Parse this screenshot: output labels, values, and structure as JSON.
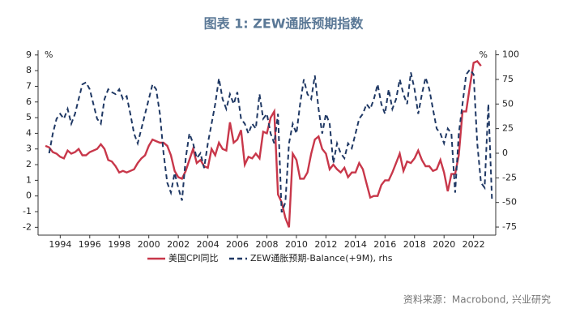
{
  "chart_data": {
    "type": "line",
    "title": "图表 1:     ZEW通胀预期指数",
    "source": "资料来源：Macrobond, 兴业研究",
    "y_unit": "%",
    "y2_unit": "%",
    "xlim": [
      1992.5,
      2023.5
    ],
    "xticks": [
      1994,
      1996,
      1998,
      2000,
      2002,
      2004,
      2006,
      2008,
      2010,
      2012,
      2014,
      2016,
      2018,
      2020,
      2022
    ],
    "ylim": [
      -2.5,
      9.3
    ],
    "yticks": [
      -2,
      -1,
      0,
      1,
      2,
      3,
      4,
      5,
      6,
      7,
      8,
      9
    ],
    "y2lim": [
      -83.2,
      104.6
    ],
    "y2ticks": [
      -75,
      -50,
      -25,
      0,
      25,
      50,
      75,
      100
    ],
    "grid": false,
    "legend": "bottom",
    "series": [
      {
        "name": "美国CPI同比",
        "color": "#c8374a",
        "dash": false,
        "x": [
          1993,
          1993.25,
          1993.5,
          1993.75,
          1994,
          1994.25,
          1994.5,
          1994.75,
          1995,
          1995.25,
          1995.5,
          1995.75,
          1996,
          1996.25,
          1996.5,
          1996.75,
          1997,
          1997.25,
          1997.5,
          1997.75,
          1998,
          1998.25,
          1998.5,
          1998.75,
          1999,
          1999.25,
          1999.5,
          1999.75,
          2000,
          2000.25,
          2000.5,
          2000.75,
          2001,
          2001.25,
          2001.5,
          2001.75,
          2002,
          2002.25,
          2002.5,
          2002.75,
          2003,
          2003.25,
          2003.5,
          2003.75,
          2004,
          2004.25,
          2004.5,
          2004.75,
          2005,
          2005.25,
          2005.5,
          2005.75,
          2006,
          2006.25,
          2006.5,
          2006.75,
          2007,
          2007.25,
          2007.5,
          2007.75,
          2008,
          2008.25,
          2008.5,
          2008.75,
          2009,
          2009.25,
          2009.5,
          2009.75,
          2010,
          2010.25,
          2010.5,
          2010.75,
          2011,
          2011.25,
          2011.5,
          2011.75,
          2012,
          2012.25,
          2012.5,
          2012.75,
          2013,
          2013.25,
          2013.5,
          2013.75,
          2014,
          2014.25,
          2014.5,
          2014.75,
          2015,
          2015.25,
          2015.5,
          2015.75,
          2016,
          2016.25,
          2016.5,
          2016.75,
          2017,
          2017.25,
          2017.5,
          2017.75,
          2018,
          2018.25,
          2018.5,
          2018.75,
          2019,
          2019.25,
          2019.5,
          2019.75,
          2020,
          2020.25,
          2020.5,
          2020.75,
          2021,
          2021.25,
          2021.5,
          2021.75,
          2022,
          2022.25,
          2022.5
        ],
        "values": [
          3.2,
          3.1,
          2.8,
          2.7,
          2.5,
          2.4,
          2.9,
          2.7,
          2.8,
          3.0,
          2.6,
          2.6,
          2.8,
          2.9,
          3.0,
          3.3,
          3.0,
          2.3,
          2.2,
          1.9,
          1.5,
          1.6,
          1.5,
          1.6,
          1.7,
          2.1,
          2.4,
          2.6,
          3.2,
          3.6,
          3.5,
          3.4,
          3.4,
          3.2,
          2.6,
          1.6,
          1.2,
          1.1,
          1.6,
          2.3,
          3.0,
          2.1,
          2.3,
          1.9,
          1.8,
          3.0,
          2.6,
          3.4,
          3.0,
          2.9,
          4.7,
          3.4,
          3.6,
          4.2,
          2.0,
          2.5,
          2.4,
          2.7,
          2.4,
          4.1,
          4.0,
          5.0,
          5.4,
          0.1,
          -0.4,
          -1.4,
          -2.0,
          2.7,
          2.3,
          1.1,
          1.1,
          1.5,
          2.7,
          3.6,
          3.8,
          3.0,
          2.7,
          1.7,
          2.0,
          1.7,
          1.5,
          1.8,
          1.2,
          1.5,
          1.5,
          2.1,
          1.7,
          0.8,
          -0.1,
          0.0,
          0.0,
          0.7,
          1.0,
          1.0,
          1.5,
          2.1,
          2.7,
          1.6,
          2.2,
          2.1,
          2.4,
          2.9,
          2.3,
          1.9,
          1.9,
          1.6,
          1.7,
          2.3,
          1.5,
          0.3,
          1.4,
          1.4,
          2.6,
          5.4,
          5.4,
          7.0,
          8.5,
          8.6,
          8.3
        ]
      },
      {
        "name": "ZEW通胀预期-Balance(+9M), rhs",
        "color": "#1f3864",
        "dash": true,
        "axis": "y2",
        "x": [
          1993.25,
          1993.5,
          1993.75,
          1994,
          1994.25,
          1994.5,
          1994.75,
          1995,
          1995.25,
          1995.5,
          1995.75,
          1996,
          1996.25,
          1996.5,
          1996.75,
          1997,
          1997.25,
          1997.5,
          1997.75,
          1998,
          1998.25,
          1998.5,
          1998.75,
          1999,
          1999.25,
          1999.5,
          1999.75,
          2000,
          2000.25,
          2000.5,
          2000.75,
          2001,
          2001.25,
          2001.5,
          2001.75,
          2002,
          2002.25,
          2002.5,
          2002.75,
          2003,
          2003.25,
          2003.5,
          2003.75,
          2004,
          2004.25,
          2004.5,
          2004.75,
          2005,
          2005.25,
          2005.5,
          2005.75,
          2006,
          2006.25,
          2006.5,
          2006.75,
          2007,
          2007.25,
          2007.5,
          2007.75,
          2008,
          2008.25,
          2008.5,
          2008.75,
          2009,
          2009.25,
          2009.5,
          2009.75,
          2010,
          2010.25,
          2010.5,
          2010.75,
          2011,
          2011.25,
          2011.5,
          2011.75,
          2012,
          2012.25,
          2012.5,
          2012.75,
          2013,
          2013.25,
          2013.5,
          2013.75,
          2014,
          2014.25,
          2014.5,
          2014.75,
          2015,
          2015.25,
          2015.5,
          2015.75,
          2016,
          2016.25,
          2016.5,
          2016.75,
          2017,
          2017.25,
          2017.5,
          2017.75,
          2018,
          2018.25,
          2018.5,
          2018.75,
          2019,
          2019.25,
          2019.5,
          2019.75,
          2020,
          2020.25,
          2020.5,
          2020.75,
          2021,
          2021.25,
          2021.5,
          2021.75,
          2022,
          2022.25,
          2022.5,
          2022.75,
          2023,
          2023.25
        ],
        "values": [
          0,
          20,
          35,
          40,
          35,
          45,
          30,
          40,
          55,
          70,
          72,
          65,
          50,
          35,
          30,
          55,
          65,
          62,
          60,
          65,
          55,
          58,
          40,
          20,
          10,
          25,
          40,
          55,
          70,
          65,
          40,
          0,
          -30,
          -40,
          -20,
          -35,
          -48,
          -5,
          20,
          10,
          -5,
          0,
          -15,
          10,
          30,
          50,
          76,
          55,
          45,
          60,
          50,
          62,
          35,
          30,
          20,
          30,
          25,
          60,
          35,
          40,
          20,
          10,
          40,
          -60,
          -50,
          10,
          30,
          20,
          50,
          75,
          60,
          55,
          79,
          45,
          20,
          40,
          30,
          -10,
          10,
          0,
          -5,
          10,
          5,
          20,
          35,
          40,
          50,
          45,
          55,
          70,
          50,
          40,
          65,
          45,
          55,
          75,
          60,
          50,
          82,
          65,
          40,
          60,
          77,
          65,
          45,
          25,
          20,
          10,
          25,
          20,
          -40,
          20,
          50,
          80,
          85,
          80,
          10,
          -30,
          -35,
          50,
          -48
        ]
      }
    ]
  }
}
